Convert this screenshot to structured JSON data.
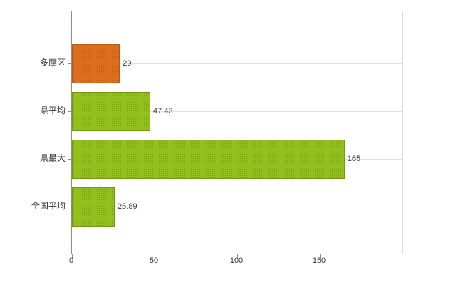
{
  "chart_data": {
    "type": "bar",
    "orientation": "horizontal",
    "title": "",
    "xlabel": "",
    "ylabel": "",
    "categories": [
      "多摩区",
      "県平均",
      "県最大",
      "全国平均"
    ],
    "values": [
      29,
      47.43,
      165,
      25.89
    ],
    "value_labels": [
      "29",
      "47.43",
      "165",
      "25.89"
    ],
    "bar_colors": [
      "#dd6e1f",
      "#93c01f",
      "#93c01f",
      "#93c01f"
    ],
    "bar_dot_colors": [
      "#c05d13",
      "#7ba413",
      "#7ba413",
      "#7ba413"
    ],
    "bar_border_colors": [
      "#b85a15",
      "#74990f",
      "#74990f",
      "#74990f"
    ],
    "xlim": [
      0,
      200
    ],
    "x_ticks": [
      "0",
      "50",
      "100",
      "150"
    ],
    "grid": "horizontal lines at category centers",
    "legend": "none"
  },
  "colors": {
    "background": "#ffffff",
    "axis_line": "#8c8c8c",
    "plot_border": "#dcdcdc",
    "gridline": "#e3e3e3",
    "label_text": "#333333",
    "value_text": "#3d3d3d"
  }
}
